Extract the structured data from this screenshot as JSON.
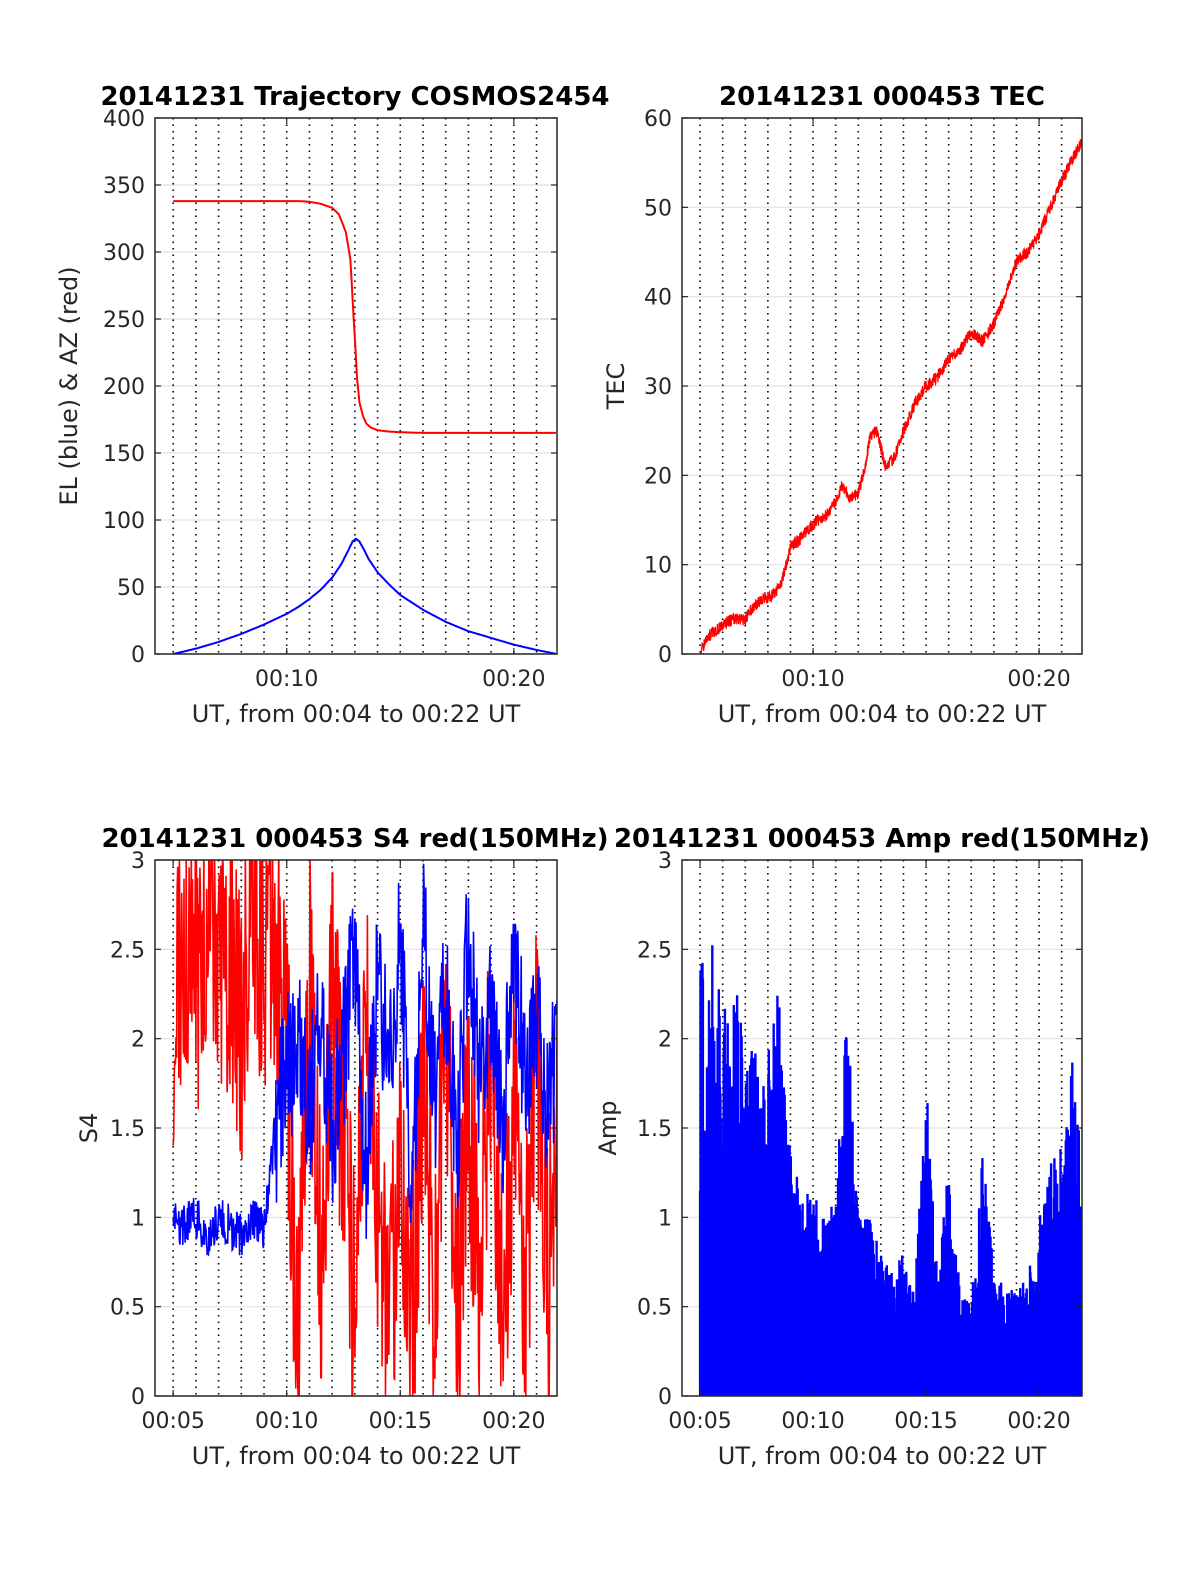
{
  "chart_data": [
    {
      "type": "line",
      "title": "20141231 Trajectory COSMOS2454",
      "xlabel": "UT, from 00:04 to 00:22 UT",
      "ylabel": "EL (blue) & AZ (red)",
      "xlim": [
        4.2,
        21.9
      ],
      "ylim": [
        0,
        400
      ],
      "x_ticks": [
        10,
        20
      ],
      "x_tick_labels": [
        "00:10",
        "00:20"
      ],
      "y_ticks": [
        0,
        50,
        100,
        150,
        200,
        250,
        300,
        350,
        400
      ],
      "y_tick_labels": [
        "0",
        "50",
        "100",
        "150",
        "200",
        "250",
        "300",
        "350",
        "400"
      ],
      "vertical_grid": "dotted",
      "horizontal_grid": "solid light",
      "series": [
        {
          "color": "#ff0000",
          "x": [
            5,
            6,
            7,
            8,
            9,
            10,
            10.5,
            11,
            11.5,
            12,
            12.3,
            12.6,
            12.8,
            12.9,
            13.0,
            13.1,
            13.2,
            13.35,
            13.5,
            13.7,
            14,
            14.5,
            15,
            16,
            17,
            18,
            19,
            20,
            21,
            21.9
          ],
          "values": [
            338,
            338,
            338,
            338,
            338,
            338,
            338,
            337.5,
            336,
            333,
            328,
            315,
            295,
            265,
            235,
            205,
            188,
            178,
            172,
            169,
            167,
            166,
            165.5,
            165,
            165,
            165,
            165,
            165,
            165,
            165
          ]
        },
        {
          "color": "#0000ff",
          "x": [
            5,
            6,
            7,
            8,
            9,
            10,
            10.5,
            11,
            11.5,
            12,
            12.4,
            12.7,
            12.9,
            13.05,
            13.2,
            13.4,
            13.6,
            14,
            14.5,
            15,
            16,
            17,
            18,
            19,
            20,
            21,
            21.9
          ],
          "values": [
            0,
            4,
            9,
            15,
            22,
            30,
            35,
            41,
            48,
            57,
            67,
            77,
            84,
            86,
            84,
            78,
            71,
            61,
            52,
            44,
            33,
            24,
            17,
            12,
            7,
            3,
            0
          ]
        }
      ]
    },
    {
      "type": "line",
      "title": "20141231 000453 TEC",
      "xlabel": "UT, from 00:04 to 00:22 UT",
      "ylabel": "TEC",
      "xlim": [
        4.2,
        21.9
      ],
      "ylim": [
        0,
        60
      ],
      "x_ticks": [
        10,
        20
      ],
      "x_tick_labels": [
        "00:10",
        "00:20"
      ],
      "y_ticks": [
        0,
        10,
        20,
        30,
        40,
        50,
        60
      ],
      "y_tick_labels": [
        "0",
        "10",
        "20",
        "30",
        "40",
        "50",
        "60"
      ],
      "vertical_grid": "dotted",
      "horizontal_grid": "solid light",
      "series": [
        {
          "color": "#ff0000",
          "x": [
            5,
            5.3,
            5.6,
            6,
            6.5,
            7,
            7.4,
            7.8,
            8.2,
            8.6,
            9,
            9.4,
            9.8,
            10.2,
            10.6,
            11,
            11.3,
            11.6,
            12,
            12.3,
            12.5,
            12.8,
            13.2,
            13.6,
            14,
            14.5,
            15,
            15.5,
            16,
            16.5,
            17,
            17.5,
            18,
            18.5,
            19,
            19.5,
            20,
            20.5,
            21,
            21.4,
            21.9
          ],
          "values": [
            0,
            1.8,
            2.5,
            3.2,
            4,
            3.8,
            5.5,
            6.2,
            6.5,
            8,
            12,
            12.8,
            14,
            15,
            15.5,
            17,
            19,
            17.5,
            18,
            21,
            24,
            25,
            21,
            22,
            25,
            28,
            30,
            31,
            33,
            34,
            36,
            35,
            37,
            40,
            44,
            45,
            47,
            50,
            53,
            55,
            57.5
          ]
        }
      ]
    },
    {
      "type": "line",
      "title": "20141231 000453 S4 red(150MHz)",
      "xlabel": "UT, from 00:04 to 00:22 UT",
      "ylabel": "S4",
      "xlim": [
        4.2,
        21.9
      ],
      "ylim": [
        0,
        3
      ],
      "x_ticks": [
        5,
        10,
        15,
        20
      ],
      "x_tick_labels": [
        "00:05",
        "00:10",
        "00:15",
        "00:20"
      ],
      "y_ticks": [
        0,
        0.5,
        1,
        1.5,
        2,
        2.5,
        3
      ],
      "y_tick_labels": [
        "0",
        "0.5",
        "1",
        "1.5",
        "2",
        "2.5",
        "3"
      ],
      "vertical_grid": "dotted",
      "horizontal_grid": "solid light",
      "series": [
        {
          "color": "#ff0000",
          "x": [
            5,
            5.5,
            6,
            6.5,
            7,
            7.5,
            8,
            8.5,
            9,
            9.5,
            10,
            10.5,
            11,
            11.5,
            12,
            12.5,
            13,
            13.5,
            14,
            14.5,
            15,
            15.5,
            16,
            16.5,
            17,
            17.5,
            18,
            18.5,
            19,
            19.5,
            20,
            20.5,
            21,
            21.5,
            21.9
          ],
          "values": [
            2.2,
            2.6,
            2.3,
            2.7,
            2.2,
            2.5,
            2.0,
            2.8,
            2.3,
            2.6,
            2.0,
            0.3,
            2.4,
            0.8,
            2.2,
            1.5,
            0.5,
            2.1,
            1.0,
            0.2,
            1.5,
            0.3,
            1.8,
            0.6,
            2.2,
            0.4,
            1.6,
            0.7,
            2.0,
            0.3,
            1.7,
            0.5,
            1.9,
            0.6,
            1.4
          ]
        },
        {
          "color": "#0000ff",
          "x": [
            5,
            5.5,
            6,
            6.5,
            7,
            7.5,
            8,
            8.5,
            9,
            9.5,
            10,
            10.5,
            11,
            11.5,
            12,
            12.5,
            13,
            13.5,
            14,
            14.5,
            15,
            15.5,
            16,
            16.5,
            17,
            17.5,
            18,
            18.5,
            19,
            19.5,
            20,
            20.5,
            21,
            21.5,
            21.9
          ],
          "values": [
            1.0,
            0.95,
            1.0,
            0.9,
            1.0,
            0.95,
            0.9,
            1.0,
            0.95,
            1.5,
            1.8,
            2.0,
            1.6,
            2.2,
            1.5,
            1.9,
            2.5,
            1.2,
            2.4,
            1.8,
            2.6,
            1.1,
            2.8,
            1.6,
            2.3,
            1.3,
            2.7,
            1.7,
            2.2,
            1.5,
            2.5,
            1.8,
            2.1,
            1.6,
            2.0
          ]
        }
      ]
    },
    {
      "type": "line",
      "title": "20141231 000453 Amp red(150MHz)",
      "xlabel": "UT, from 00:04 to 00:22 UT",
      "ylabel": "Amp",
      "xlim": [
        4.2,
        21.9
      ],
      "ylim": [
        0,
        3
      ],
      "x_ticks": [
        5,
        10,
        15,
        20
      ],
      "x_tick_labels": [
        "00:05",
        "00:10",
        "00:15",
        "00:20"
      ],
      "y_ticks": [
        0,
        0.5,
        1,
        1.5,
        2,
        2.5,
        3
      ],
      "y_tick_labels": [
        "0",
        "0.5",
        "1",
        "1.5",
        "2",
        "2.5",
        "3"
      ],
      "vertical_grid": "dotted",
      "horizontal_grid": "solid light",
      "series": [
        {
          "color": "#0000ff",
          "x": [
            5,
            5.3,
            5.6,
            6,
            6.3,
            6.7,
            7,
            7.3,
            7.6,
            8,
            8.4,
            8.7,
            9,
            9.5,
            10,
            10.5,
            11,
            11.5,
            12,
            12.5,
            13,
            13.5,
            14,
            14.5,
            15,
            15.5,
            16,
            16.5,
            17,
            17.5,
            18,
            18.5,
            19,
            19.5,
            20,
            20.5,
            21,
            21.5,
            21.9
          ],
          "values": [
            2.55,
            2.3,
            2.6,
            2.25,
            2.15,
            2.35,
            1.9,
            2.1,
            1.85,
            1.9,
            2.4,
            1.8,
            1.5,
            1.1,
            1.2,
            1.0,
            1.1,
            2.3,
            1.0,
            1.0,
            0.8,
            0.7,
            0.8,
            0.6,
            1.8,
            0.7,
            1.3,
            0.6,
            0.5,
            1.4,
            0.7,
            0.6,
            0.6,
            0.7,
            1.0,
            1.3,
            1.4,
            1.9,
            1.3
          ]
        }
      ]
    }
  ]
}
